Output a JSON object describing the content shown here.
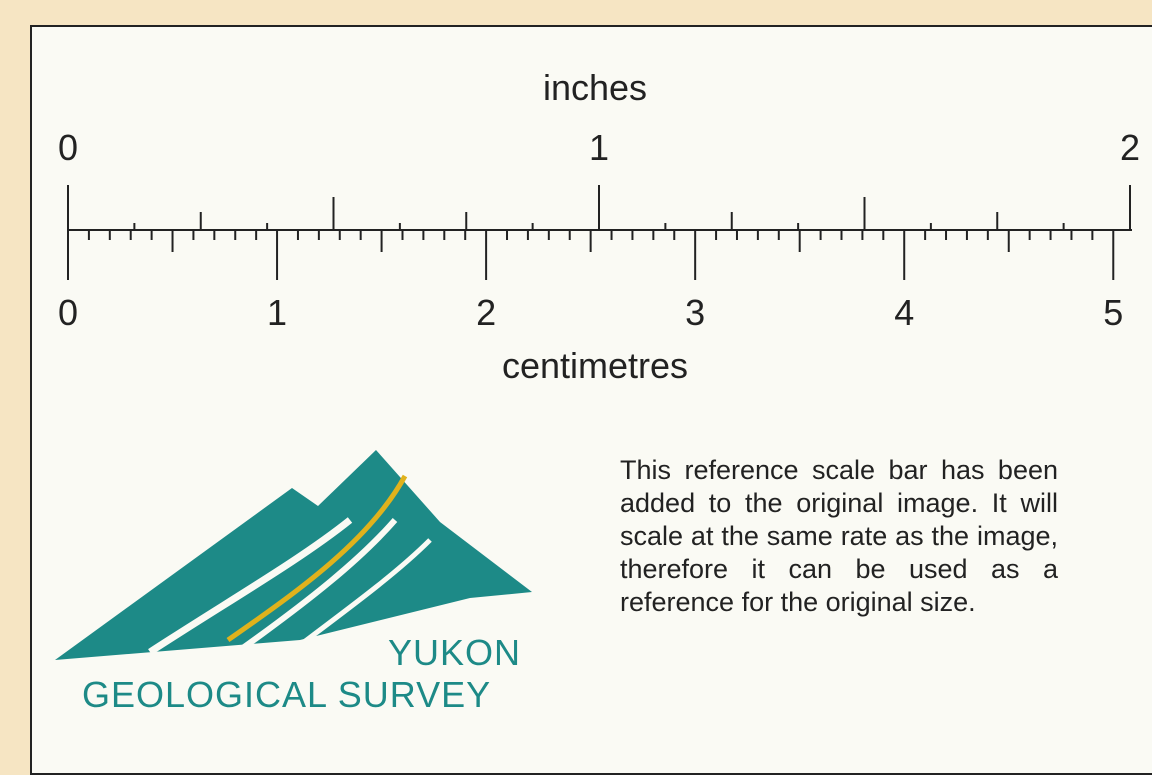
{
  "scale": {
    "inch_title": "inches",
    "inch_ticks": [
      0,
      1,
      2
    ],
    "cm_title": "centimetres",
    "cm_ticks": [
      0,
      1,
      2,
      3,
      4,
      5
    ]
  },
  "logo": {
    "line1": "YUKON",
    "line2": "GEOLOGICAL SURVEY"
  },
  "description": "This reference scale bar has been added to the original image. It will scale at the same rate as the image, therefore it can be used as a reference for the original size."
}
